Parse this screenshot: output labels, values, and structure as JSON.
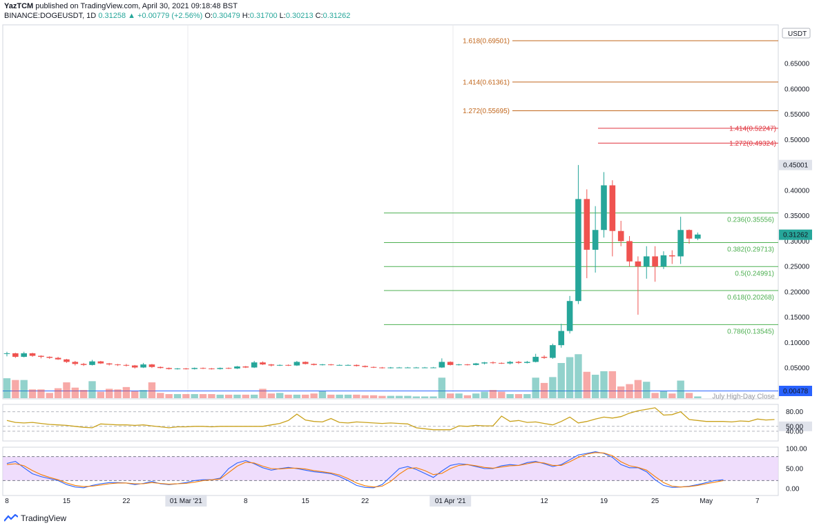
{
  "header": {
    "publisher": "YazTCM",
    "published_text": "published on TradingView.com, April 30, 2021 09:18:48 BST",
    "symbol": "BINANCE:DOGEUSDT, 1D",
    "last": "0.31258",
    "change": "+0.00779 (+2.56%)",
    "o_label": "O:",
    "o_val": "0.30479",
    "h_label": "H:",
    "h_val": "0.31700",
    "l_label": "L:",
    "l_val": "0.30213",
    "c_label": "C:",
    "c_val": "0.31262"
  },
  "branding": {
    "name": "TradingView"
  },
  "colors": {
    "up": "#26a69a",
    "down": "#ef5350",
    "fib_ext": "#c0651a",
    "fib_ext2": "#e0333d",
    "fib_ret": "#4caf50",
    "rsi": "#c9a11a",
    "stoch_k": "#2962ff",
    "stoch_d": "#f57c00",
    "stoch_band": "#e9d1fb"
  },
  "chart_data": {
    "type": "candlestick",
    "currency_label": "USDT",
    "price_axis_ticks": [
      "0.65000",
      "0.60000",
      "0.55000",
      "0.50000",
      "0.40000",
      "0.35000",
      "0.30000",
      "0.25000",
      "0.20000",
      "0.15000",
      "0.10000",
      "0.05000"
    ],
    "price_badges": [
      {
        "label": "0.45001",
        "value": 0.45001,
        "style": "gray"
      },
      {
        "label": "0.31262",
        "value": 0.31262,
        "style": "green"
      },
      {
        "label": "0.00478",
        "value": 0.00478,
        "style": "blue"
      }
    ],
    "july_high_label": "July High-Day Close",
    "fib_extensions": [
      {
        "label": "1.618(0.69501)",
        "value": 0.69501,
        "set": "left"
      },
      {
        "label": "1.414(0.61361)",
        "value": 0.61361,
        "set": "left"
      },
      {
        "label": "1.272(0.55695)",
        "value": 0.55695,
        "set": "left"
      },
      {
        "label": "1.414(0.52247)",
        "value": 0.52247,
        "set": "right"
      },
      {
        "label": "1.272(0.49324)",
        "value": 0.49324,
        "set": "right"
      }
    ],
    "fib_retracements": [
      {
        "label": "0.236(0.35556)",
        "value": 0.35556
      },
      {
        "label": "0.382(0.29713)",
        "value": 0.29713
      },
      {
        "label": "0.5(0.24991)",
        "value": 0.24991
      },
      {
        "label": "0.618(0.20268)",
        "value": 0.20268
      },
      {
        "label": "0.786(0.13545)",
        "value": 0.13545
      }
    ],
    "x_labels": [
      {
        "label": "8",
        "day": 0
      },
      {
        "label": "15",
        "day": 7
      },
      {
        "label": "22",
        "day": 14
      },
      {
        "label": "01 Mar '21",
        "day": 21,
        "boxed": true
      },
      {
        "label": "8",
        "day": 28
      },
      {
        "label": "15",
        "day": 35
      },
      {
        "label": "22",
        "day": 42
      },
      {
        "label": "01 Apr '21",
        "day": 52,
        "boxed": true
      },
      {
        "label": "12",
        "day": 63
      },
      {
        "label": "19",
        "day": 70
      },
      {
        "label": "25",
        "day": 76
      },
      {
        "label": "May",
        "day": 82
      },
      {
        "label": "7",
        "day": 88
      }
    ],
    "candles": [
      [
        0.078,
        0.082,
        0.073,
        0.079
      ],
      [
        0.079,
        0.08,
        0.07,
        0.072
      ],
      [
        0.072,
        0.082,
        0.071,
        0.079
      ],
      [
        0.079,
        0.08,
        0.072,
        0.074
      ],
      [
        0.074,
        0.075,
        0.069,
        0.072
      ],
      [
        0.072,
        0.073,
        0.068,
        0.07
      ],
      [
        0.07,
        0.072,
        0.066,
        0.067
      ],
      [
        0.067,
        0.068,
        0.06,
        0.062
      ],
      [
        0.062,
        0.064,
        0.055,
        0.058
      ],
      [
        0.058,
        0.06,
        0.054,
        0.056
      ],
      [
        0.056,
        0.066,
        0.055,
        0.063
      ],
      [
        0.063,
        0.064,
        0.058,
        0.059
      ],
      [
        0.059,
        0.06,
        0.055,
        0.057
      ],
      [
        0.057,
        0.058,
        0.054,
        0.056
      ],
      [
        0.056,
        0.058,
        0.053,
        0.055
      ],
      [
        0.055,
        0.056,
        0.049,
        0.051
      ],
      [
        0.051,
        0.06,
        0.05,
        0.057
      ],
      [
        0.057,
        0.058,
        0.05,
        0.052
      ],
      [
        0.052,
        0.053,
        0.049,
        0.05
      ],
      [
        0.05,
        0.051,
        0.047,
        0.048
      ],
      [
        0.048,
        0.05,
        0.047,
        0.049
      ],
      [
        0.049,
        0.05,
        0.047,
        0.048
      ],
      [
        0.048,
        0.051,
        0.047,
        0.05
      ],
      [
        0.05,
        0.051,
        0.048,
        0.049
      ],
      [
        0.049,
        0.05,
        0.047,
        0.048
      ],
      [
        0.048,
        0.051,
        0.047,
        0.05
      ],
      [
        0.05,
        0.051,
        0.048,
        0.049
      ],
      [
        0.049,
        0.054,
        0.048,
        0.053
      ],
      [
        0.053,
        0.054,
        0.05,
        0.051
      ],
      [
        0.051,
        0.064,
        0.05,
        0.061
      ],
      [
        0.061,
        0.063,
        0.056,
        0.057
      ],
      [
        0.057,
        0.058,
        0.053,
        0.055
      ],
      [
        0.055,
        0.057,
        0.054,
        0.056
      ],
      [
        0.056,
        0.057,
        0.054,
        0.055
      ],
      [
        0.055,
        0.064,
        0.054,
        0.062
      ],
      [
        0.062,
        0.063,
        0.057,
        0.058
      ],
      [
        0.058,
        0.059,
        0.055,
        0.056
      ],
      [
        0.056,
        0.058,
        0.055,
        0.057
      ],
      [
        0.057,
        0.058,
        0.055,
        0.056
      ],
      [
        0.056,
        0.057,
        0.055,
        0.056
      ],
      [
        0.056,
        0.057,
        0.055,
        0.056
      ],
      [
        0.056,
        0.057,
        0.053,
        0.054
      ],
      [
        0.054,
        0.055,
        0.051,
        0.052
      ],
      [
        0.052,
        0.053,
        0.05,
        0.051
      ],
      [
        0.051,
        0.052,
        0.049,
        0.05
      ],
      [
        0.05,
        0.052,
        0.049,
        0.051
      ],
      [
        0.051,
        0.052,
        0.05,
        0.051
      ],
      [
        0.051,
        0.052,
        0.05,
        0.051
      ],
      [
        0.051,
        0.052,
        0.05,
        0.051
      ],
      [
        0.051,
        0.052,
        0.05,
        0.051
      ],
      [
        0.051,
        0.052,
        0.05,
        0.051
      ],
      [
        0.051,
        0.069,
        0.05,
        0.062
      ],
      [
        0.062,
        0.063,
        0.055,
        0.056
      ],
      [
        0.056,
        0.058,
        0.055,
        0.057
      ],
      [
        0.057,
        0.058,
        0.055,
        0.056
      ],
      [
        0.056,
        0.06,
        0.055,
        0.059
      ],
      [
        0.059,
        0.062,
        0.057,
        0.061
      ],
      [
        0.061,
        0.063,
        0.058,
        0.06
      ],
      [
        0.06,
        0.061,
        0.058,
        0.059
      ],
      [
        0.059,
        0.064,
        0.057,
        0.062
      ],
      [
        0.062,
        0.064,
        0.058,
        0.06
      ],
      [
        0.06,
        0.064,
        0.059,
        0.062
      ],
      [
        0.062,
        0.078,
        0.061,
        0.072
      ],
      [
        0.072,
        0.075,
        0.068,
        0.07
      ],
      [
        0.07,
        0.098,
        0.068,
        0.095
      ],
      [
        0.095,
        0.137,
        0.09,
        0.123
      ],
      [
        0.123,
        0.192,
        0.118,
        0.182
      ],
      [
        0.182,
        0.45,
        0.176,
        0.383
      ],
      [
        0.383,
        0.402,
        0.227,
        0.283
      ],
      [
        0.283,
        0.369,
        0.238,
        0.322
      ],
      [
        0.322,
        0.436,
        0.307,
        0.41
      ],
      [
        0.41,
        0.42,
        0.27,
        0.32
      ],
      [
        0.32,
        0.34,
        0.29,
        0.3
      ],
      [
        0.3,
        0.31,
        0.25,
        0.26
      ],
      [
        0.26,
        0.27,
        0.155,
        0.25
      ],
      [
        0.25,
        0.29,
        0.226,
        0.27
      ],
      [
        0.27,
        0.29,
        0.22,
        0.25
      ],
      [
        0.25,
        0.28,
        0.245,
        0.272
      ],
      [
        0.272,
        0.282,
        0.255,
        0.27
      ],
      [
        0.27,
        0.348,
        0.255,
        0.322
      ],
      [
        0.322,
        0.323,
        0.295,
        0.305
      ],
      [
        0.305,
        0.317,
        0.302,
        0.313
      ]
    ],
    "volume": [
      34,
      31,
      31,
      15,
      15,
      9,
      17,
      27,
      18,
      14,
      29,
      11,
      16,
      15,
      19,
      12,
      14,
      27,
      9,
      7,
      7,
      7,
      7,
      7,
      7,
      6,
      6,
      6,
      6,
      6,
      16,
      8,
      9,
      6,
      6,
      6,
      8,
      12,
      6,
      6,
      6,
      6,
      5,
      5,
      4,
      4,
      4,
      4,
      3,
      3,
      3,
      35,
      8,
      8,
      5,
      8,
      11,
      14,
      11,
      7,
      7,
      7,
      35,
      26,
      36,
      60,
      70,
      75,
      45,
      40,
      46,
      46,
      20,
      24,
      31,
      28,
      9,
      12,
      8,
      30,
      9,
      3
    ],
    "rsi": {
      "levels": [
        "80.00",
        "50.00",
        "40.00"
      ],
      "highlight": "50.00",
      "values": [
        62,
        58,
        57,
        58,
        56,
        54,
        53,
        52,
        50,
        48,
        47,
        55,
        54,
        53,
        53,
        52,
        53,
        51,
        49,
        47,
        49,
        49,
        50,
        50,
        49,
        50,
        50,
        50,
        50,
        50,
        50,
        53,
        56,
        62,
        75,
        63,
        60,
        59,
        66,
        58,
        57,
        59,
        58,
        57,
        56,
        57,
        56,
        55,
        47,
        45,
        43,
        43,
        43,
        51,
        50,
        52,
        51,
        51,
        71,
        60,
        62,
        58,
        59,
        56,
        53,
        60,
        69,
        57,
        60,
        65,
        69,
        67,
        70,
        77,
        82,
        85,
        88,
        73,
        74,
        80,
        64,
        62,
        60,
        60,
        60,
        59,
        61,
        60,
        65,
        63,
        64
      ]
    },
    "stoch": {
      "levels": [
        "100.00",
        "50.00",
        "0.00"
      ],
      "k": [
        63,
        68,
        52,
        37,
        30,
        25,
        20,
        10,
        4,
        2,
        8,
        12,
        15,
        15,
        14,
        10,
        13,
        18,
        12,
        10,
        12,
        15,
        20,
        22,
        22,
        26,
        50,
        64,
        70,
        62,
        52,
        46,
        50,
        53,
        50,
        46,
        42,
        40,
        37,
        30,
        20,
        8,
        3,
        2,
        10,
        30,
        50,
        55,
        48,
        38,
        28,
        44,
        58,
        62,
        60,
        55,
        50,
        50,
        57,
        60,
        58,
        65,
        68,
        62,
        55,
        60,
        72,
        84,
        88,
        92,
        88,
        78,
        60,
        52,
        52,
        42,
        22,
        8,
        3,
        4,
        6,
        10,
        15,
        20,
        22
      ],
      "d": [
        60,
        62,
        57,
        45,
        35,
        28,
        22,
        14,
        8,
        5,
        6,
        9,
        12,
        14,
        14,
        12,
        12,
        15,
        13,
        11,
        12,
        13,
        16,
        20,
        22,
        24,
        40,
        56,
        66,
        64,
        56,
        50,
        49,
        51,
        51,
        49,
        45,
        42,
        39,
        34,
        25,
        14,
        7,
        4,
        6,
        18,
        36,
        50,
        52,
        45,
        35,
        38,
        50,
        58,
        60,
        57,
        53,
        51,
        54,
        57,
        58,
        62,
        66,
        64,
        58,
        58,
        67,
        78,
        86,
        90,
        89,
        82,
        67,
        57,
        53,
        46,
        30,
        15,
        6,
        4,
        5,
        8,
        12,
        16,
        20
      ]
    }
  }
}
